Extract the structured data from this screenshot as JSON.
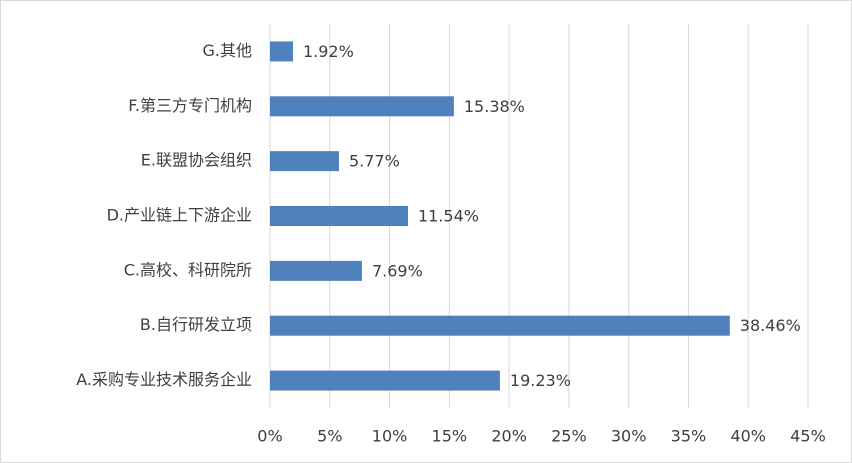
{
  "chart_data": {
    "type": "bar",
    "orientation": "horizontal",
    "categories": [
      "A.采购专业技术服务企业",
      "B.自行研发立项",
      "C.高校、科研院所",
      "D.产业链上下游企业",
      "E.联盟协会组织",
      "F.第三方专门机构",
      "G.其他"
    ],
    "values": [
      19.23,
      38.46,
      7.69,
      11.54,
      5.77,
      15.38,
      1.92
    ],
    "value_labels": [
      "19.23%",
      "38.46%",
      "7.69%",
      "11.54%",
      "5.77%",
      "15.38%",
      "1.92%"
    ],
    "color": "#4f81bd",
    "xlim": [
      0,
      45
    ],
    "xticks": [
      {
        "value": 0,
        "label": "0%"
      },
      {
        "value": 5,
        "label": "5%"
      },
      {
        "value": 10,
        "label": "10%"
      },
      {
        "value": 15,
        "label": "15%"
      },
      {
        "value": 20,
        "label": "20%"
      },
      {
        "value": 25,
        "label": "25%"
      },
      {
        "value": 30,
        "label": "30%"
      },
      {
        "value": 35,
        "label": "35%"
      },
      {
        "value": 40,
        "label": "40%"
      },
      {
        "value": 45,
        "label": "45%"
      }
    ],
    "grid": true
  }
}
